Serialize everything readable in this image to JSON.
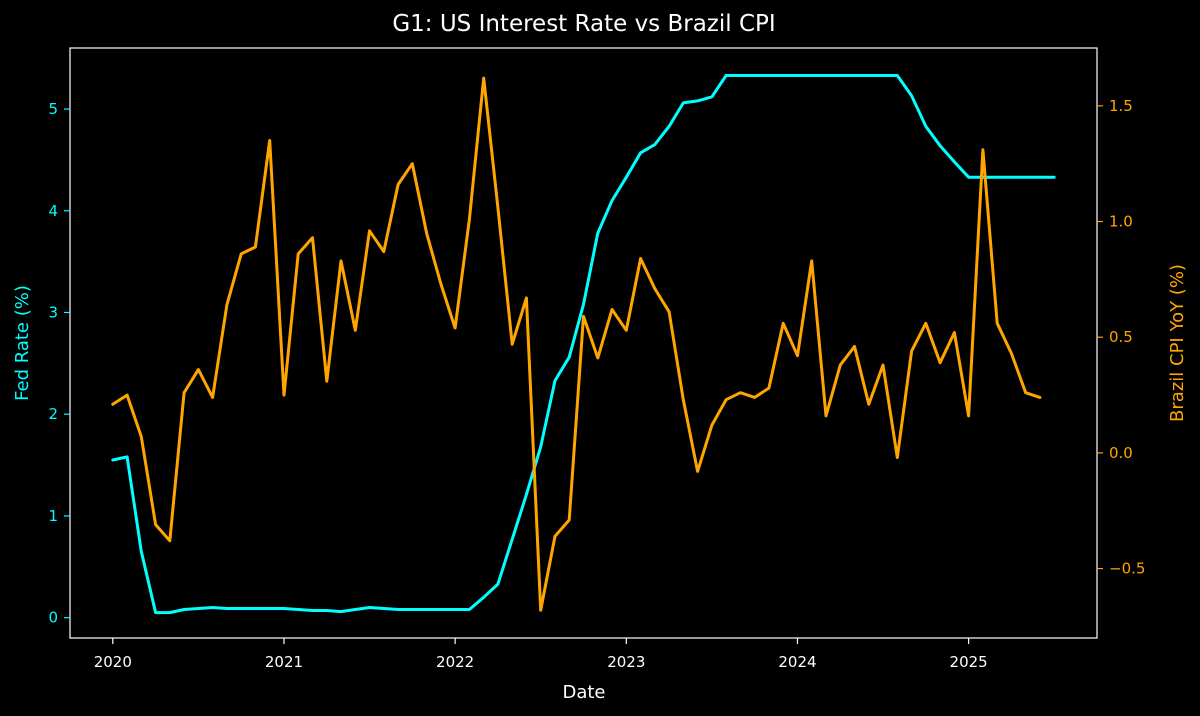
{
  "chart_data": {
    "type": "line",
    "title": "G1: US Interest Rate vs Brazil CPI",
    "xlabel": "Date",
    "y1label": "Fed Rate (%)",
    "y2label": "Brazil CPI YoY (%)",
    "x_ticks": [
      "2020",
      "2021",
      "2022",
      "2023",
      "2024",
      "2025"
    ],
    "y1_ticks": [
      "0",
      "1",
      "2",
      "3",
      "4",
      "5"
    ],
    "y2_ticks": [
      "−0.5",
      "0.0",
      "0.5",
      "1.0",
      "1.5"
    ],
    "x_range": [
      "2019-10",
      "2025-10"
    ],
    "y1lim": [
      -0.2,
      5.6
    ],
    "y2lim": [
      -0.8,
      1.75
    ],
    "grid": false,
    "colors": {
      "fed": "#00ffff",
      "cpi": "#ffa500",
      "background": "#000000",
      "text": "#ffffff"
    },
    "series": [
      {
        "axis": "left",
        "color": "#00ffff",
        "x": [
          "2020-01",
          "2020-02",
          "2020-03",
          "2020-04",
          "2020-05",
          "2020-06",
          "2020-07",
          "2020-08",
          "2020-09",
          "2020-10",
          "2020-11",
          "2020-12",
          "2021-01",
          "2021-02",
          "2021-03",
          "2021-04",
          "2021-05",
          "2021-06",
          "2021-07",
          "2021-08",
          "2021-09",
          "2021-10",
          "2021-11",
          "2021-12",
          "2022-01",
          "2022-02",
          "2022-03",
          "2022-04",
          "2022-05",
          "2022-06",
          "2022-07",
          "2022-08",
          "2022-09",
          "2022-10",
          "2022-11",
          "2022-12",
          "2023-01",
          "2023-02",
          "2023-03",
          "2023-04",
          "2023-05",
          "2023-06",
          "2023-07",
          "2023-08",
          "2023-09",
          "2023-10",
          "2023-11",
          "2023-12",
          "2024-01",
          "2024-02",
          "2024-03",
          "2024-04",
          "2024-05",
          "2024-06",
          "2024-07",
          "2024-08",
          "2024-09",
          "2024-10",
          "2024-11",
          "2024-12",
          "2025-01",
          "2025-02",
          "2025-03",
          "2025-04",
          "2025-05",
          "2025-06",
          "2025-07"
        ],
        "values": [
          1.55,
          1.58,
          0.65,
          0.05,
          0.05,
          0.08,
          0.09,
          0.1,
          0.09,
          0.09,
          0.09,
          0.09,
          0.09,
          0.08,
          0.07,
          0.07,
          0.06,
          0.08,
          0.1,
          0.09,
          0.08,
          0.08,
          0.08,
          0.08,
          0.08,
          0.08,
          0.2,
          0.33,
          0.77,
          1.21,
          1.68,
          2.33,
          2.56,
          3.08,
          3.78,
          4.1,
          4.33,
          4.57,
          4.65,
          4.83,
          5.06,
          5.08,
          5.12,
          5.33,
          5.33,
          5.33,
          5.33,
          5.33,
          5.33,
          5.33,
          5.33,
          5.33,
          5.33,
          5.33,
          5.33,
          5.33,
          5.13,
          4.83,
          4.64,
          4.48,
          4.33,
          4.33,
          4.33,
          4.33,
          4.33,
          4.33,
          4.33
        ]
      },
      {
        "axis": "right",
        "color": "#ffa500",
        "x": [
          "2020-01",
          "2020-02",
          "2020-03",
          "2020-04",
          "2020-05",
          "2020-06",
          "2020-07",
          "2020-08",
          "2020-09",
          "2020-10",
          "2020-11",
          "2020-12",
          "2021-01",
          "2021-02",
          "2021-03",
          "2021-04",
          "2021-05",
          "2021-06",
          "2021-07",
          "2021-08",
          "2021-09",
          "2021-10",
          "2021-11",
          "2021-12",
          "2022-01",
          "2022-02",
          "2022-03",
          "2022-04",
          "2022-05",
          "2022-06",
          "2022-07",
          "2022-08",
          "2022-09",
          "2022-10",
          "2022-11",
          "2022-12",
          "2023-01",
          "2023-02",
          "2023-03",
          "2023-04",
          "2023-05",
          "2023-06",
          "2023-07",
          "2023-08",
          "2023-09",
          "2023-10",
          "2023-11",
          "2023-12",
          "2024-01",
          "2024-02",
          "2024-03",
          "2024-04",
          "2024-05",
          "2024-06",
          "2024-07",
          "2024-08",
          "2024-09",
          "2024-10",
          "2024-11",
          "2024-12",
          "2025-01",
          "2025-02",
          "2025-03",
          "2025-04",
          "2025-05",
          "2025-06"
        ],
        "values": [
          0.21,
          0.25,
          0.07,
          -0.31,
          -0.38,
          0.26,
          0.36,
          0.24,
          0.64,
          0.86,
          0.89,
          1.35,
          0.25,
          0.86,
          0.93,
          0.31,
          0.83,
          0.53,
          0.96,
          0.87,
          1.16,
          1.25,
          0.95,
          0.73,
          0.54,
          1.01,
          1.62,
          1.06,
          0.47,
          0.67,
          -0.68,
          -0.36,
          -0.29,
          0.59,
          0.41,
          0.62,
          0.53,
          0.84,
          0.71,
          0.61,
          0.23,
          -0.08,
          0.12,
          0.23,
          0.26,
          0.24,
          0.28,
          0.56,
          0.42,
          0.83,
          0.16,
          0.38,
          0.46,
          0.21,
          0.38,
          -0.02,
          0.44,
          0.56,
          0.39,
          0.52,
          0.16,
          1.31,
          0.56,
          0.43,
          0.26,
          0.24
        ]
      }
    ]
  }
}
